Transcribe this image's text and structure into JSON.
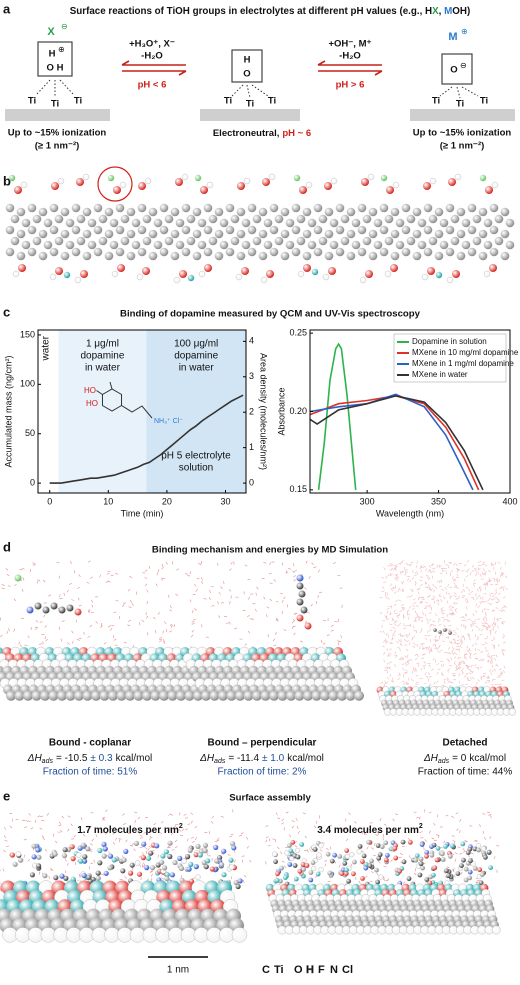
{
  "panel_a": {
    "label": "a",
    "title": [
      "Surface reactions of TiOH groups in electrolytes at different pH values (e.g., H",
      "X",
      ", ",
      "M",
      "OH)"
    ],
    "states": [
      {
        "ion": "X",
        "ion_charge": "⊖",
        "top": "H",
        "top_charge": "⊕",
        "bottom": "O H",
        "ti": [
          "Ti",
          "Ti",
          "Ti"
        ],
        "caption": [
          "Up to ~15% ionization",
          "(≥ 1 nm⁻²)"
        ]
      },
      {
        "top": "H",
        "bottom": "O",
        "ti": [
          "Ti",
          "Ti",
          "Ti"
        ],
        "caption": [
          "Electroneutral,"
        ],
        "caption_highlight": "pH ~ 6"
      },
      {
        "ion": "M",
        "ion_charge": "⊕",
        "center": "O",
        "center_charge": "⊖",
        "ti": [
          "Ti",
          "Ti",
          "Ti"
        ],
        "caption": [
          "Up to ~15% ionization",
          "(≥ 1 nm⁻²)"
        ]
      }
    ],
    "arrows": [
      {
        "reagents": "+H₃O⁺, X⁻",
        "loss": "-H₂O",
        "condition": "pH < 6"
      },
      {
        "reagents": "+OH⁻, M⁺",
        "loss": "-H₂O",
        "condition": "pH > 6"
      }
    ]
  },
  "panel_b": {
    "label": "b"
  },
  "panel_c": {
    "label": "c",
    "title": "Binding of dopamine measured by QCM and UV-Vis spectroscopy"
  },
  "chart_data": [
    {
      "type": "line",
      "x_label": "Time (min)",
      "y_label": "Accumulated mass (ng/cm²)",
      "y2_label": "Area density (molecules/nm²)",
      "x": [
        0,
        1,
        2,
        3,
        4,
        5,
        6,
        7,
        8,
        9,
        10,
        11,
        12,
        13,
        14,
        15,
        16,
        17,
        18,
        19,
        20,
        21,
        22,
        23,
        24,
        25,
        26,
        27,
        28,
        29,
        30,
        31,
        32,
        33
      ],
      "series": [
        {
          "color": "#333333",
          "values": [
            0,
            0,
            0,
            1,
            2,
            3,
            4,
            5,
            5,
            6,
            7,
            8,
            10,
            12,
            14,
            16,
            19,
            21,
            25,
            29,
            34,
            39,
            44,
            49,
            54,
            58,
            63,
            67,
            71,
            75,
            79,
            83,
            86,
            89
          ]
        }
      ],
      "xlim": [
        -2,
        33.5
      ],
      "xticks": [
        0,
        10,
        20,
        30
      ],
      "ylim": [
        -10,
        155
      ],
      "yticks": [
        0,
        50,
        100,
        150
      ],
      "y2lim": [
        -0.28,
        4.32
      ],
      "y2ticks": [
        0,
        1,
        2,
        3,
        4
      ],
      "regions": [
        {
          "label": [
            "water"
          ],
          "xlim": [
            -2,
            1.5
          ],
          "color": "#ffffff"
        },
        {
          "label": [
            "1 μg/ml",
            "dopamine",
            "in water"
          ],
          "xlim": [
            1.5,
            16.5
          ],
          "color": "#e8f2fb"
        },
        {
          "label": [
            "100 μg/ml",
            "dopamine",
            "in water"
          ],
          "xlim": [
            16.5,
            33.5
          ],
          "color": "#d2e5f4"
        }
      ],
      "annotation": [
        "pH 5 electrolyte",
        "solution"
      ],
      "molecule_labels": [
        "HO",
        "HO",
        "NH₃⁺ Cl⁻"
      ]
    },
    {
      "type": "line",
      "x_label": "Wavelength (nm)",
      "y_label": "Absorbance",
      "xlim": [
        260,
        400
      ],
      "xticks": [
        300,
        350,
        400
      ],
      "ylim": [
        0.148,
        0.252
      ],
      "yticks": [
        0.15,
        {
          "value": 0.2,
          "label": "0.20"
        },
        0.25
      ],
      "legend": "upper right",
      "series": [
        {
          "name": "Dopamine in solution",
          "color": "#2eb34a",
          "x": [
            266,
            270,
            274,
            278,
            280,
            282,
            286,
            289,
            292
          ],
          "values": [
            0.15,
            0.18,
            0.22,
            0.24,
            0.243,
            0.24,
            0.21,
            0.18,
            0.15
          ]
        },
        {
          "name": "MXene in 10 mg/ml dopamine",
          "color": "#e0302a",
          "x": [
            260,
            280,
            300,
            320,
            340,
            355,
            368,
            378
          ],
          "values": [
            0.198,
            0.205,
            0.207,
            0.21,
            0.205,
            0.19,
            0.17,
            0.15
          ]
        },
        {
          "name": "MXene in 1 mg/ml dopamine",
          "color": "#2a62c9",
          "x": [
            260,
            280,
            300,
            320,
            340,
            355,
            366,
            374
          ],
          "values": [
            0.2,
            0.203,
            0.205,
            0.211,
            0.203,
            0.185,
            0.165,
            0.15
          ]
        },
        {
          "name": "MXene in water",
          "color": "#333333",
          "x": [
            260,
            265,
            280,
            300,
            320,
            340,
            355,
            368,
            381
          ],
          "values": [
            0.195,
            0.192,
            0.201,
            0.205,
            0.21,
            0.206,
            0.193,
            0.175,
            0.15
          ]
        }
      ]
    }
  ],
  "panel_d": {
    "label": "d",
    "title": "Binding mechanism and energies by MD Simulation",
    "states": [
      {
        "name": "Bound - coplanar",
        "symbol": "ΔH",
        "subscript": "ads",
        "energy": "= -10.5",
        "error": "± 0.3",
        "unit": "kcal/mol",
        "fraction": "Fraction of time: 51%"
      },
      {
        "name": "Bound – perpendicular",
        "symbol": "ΔH",
        "subscript": "ads",
        "energy": "= -11.4",
        "error": "± 1.0",
        "unit": "kcal/mol",
        "fraction": "Fraction of time: 2%"
      },
      {
        "name": "Detached",
        "symbol": "ΔH",
        "subscript": "ads",
        "energy": "= 0",
        "unit": "kcal/mol",
        "fraction": "Fraction of time: 44%"
      }
    ]
  },
  "panel_e": {
    "label": "e",
    "title": "Surface assembly",
    "captions": [
      {
        "text": "1.7 molecules per nm",
        "sup": "2"
      },
      {
        "text": "3.4 molecules per nm",
        "sup": "2"
      }
    ],
    "scale_bar": "1 nm",
    "elements": [
      {
        "symbol": "C",
        "color": "#333333"
      },
      {
        "symbol": "Ti",
        "color": "#1fa3a8"
      },
      {
        "symbol": "O",
        "color": "#e0302a"
      },
      {
        "symbol": "H",
        "color": "#ffffff"
      },
      {
        "symbol": "F",
        "color": "#4fb0e0"
      },
      {
        "symbol": "N",
        "color": "#2a4fd0"
      },
      {
        "symbol": "Cl",
        "color": "#5fc45f"
      }
    ]
  }
}
